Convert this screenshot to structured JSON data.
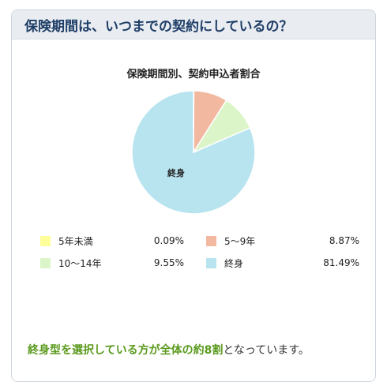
{
  "header": {
    "title": "保険期間は、いつまでの契約にしているの？"
  },
  "chart_data": {
    "type": "pie",
    "title": "保険期間別、契約申込者割合",
    "slices": [
      {
        "label": "5年未満",
        "value": 0.09,
        "value_text": "0.09%",
        "color": "#ffff99"
      },
      {
        "label": "5～9年",
        "value": 8.87,
        "value_text": "8.87%",
        "color": "#f2b8a0"
      },
      {
        "label": "10～14年",
        "value": 9.55,
        "value_text": "9.55%",
        "color": "#dcf5c8"
      },
      {
        "label": "終身",
        "value": 81.49,
        "value_text": "81.49%",
        "color": "#b8e4f0"
      }
    ],
    "slice_label": "終身"
  },
  "summary": {
    "highlight": "終身型を選択している方が全体の約8割",
    "rest": "となっています。"
  }
}
